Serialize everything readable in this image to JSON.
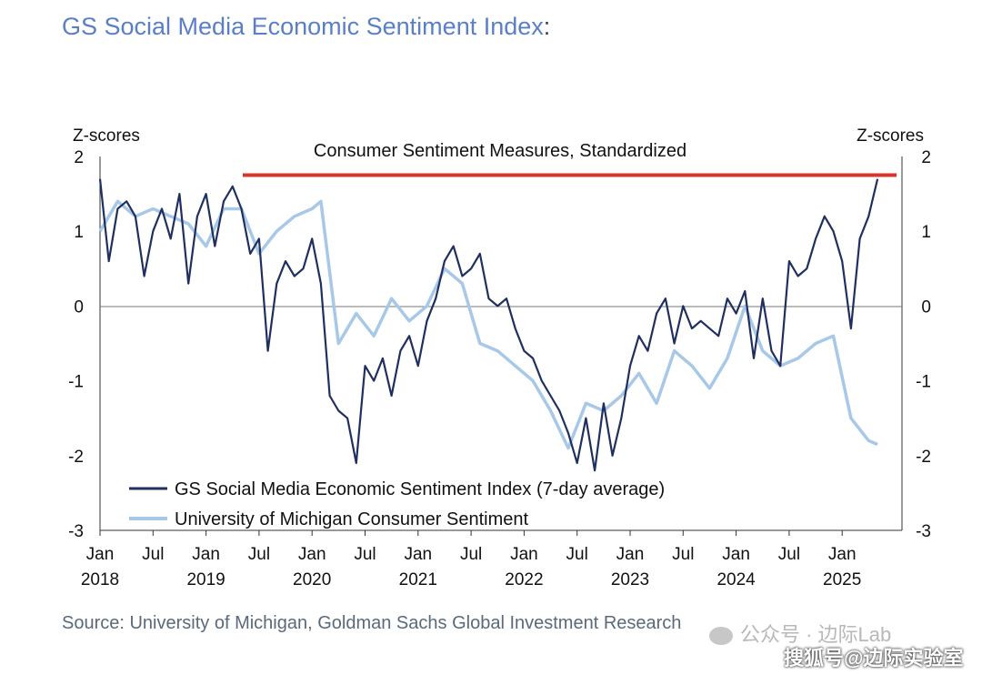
{
  "header": {
    "title": "GS Social Media Economic Sentiment Index",
    "title_suffix": ":"
  },
  "chart_data": {
    "type": "line",
    "title": "Consumer Sentiment Measures, Standardized",
    "ylabel_left": "Z-scores",
    "ylabel_right": "Z-scores",
    "ylim": [
      -3,
      2
    ],
    "y_ticks": [
      "2",
      "1",
      "0",
      "-1",
      "-2",
      "-3"
    ],
    "x_ticks": [
      {
        "month": "Jan",
        "year": "2018"
      },
      {
        "month": "Jul",
        "year": ""
      },
      {
        "month": "Jan",
        "year": "2019"
      },
      {
        "month": "Jul",
        "year": ""
      },
      {
        "month": "Jan",
        "year": "2020"
      },
      {
        "month": "Jul",
        "year": ""
      },
      {
        "month": "Jan",
        "year": "2021"
      },
      {
        "month": "Jul",
        "year": ""
      },
      {
        "month": "Jan",
        "year": "2022"
      },
      {
        "month": "Jul",
        "year": ""
      },
      {
        "month": "Jan",
        "year": "2023"
      },
      {
        "month": "Jul",
        "year": ""
      },
      {
        "month": "Jan",
        "year": "2024"
      },
      {
        "month": "Jul",
        "year": ""
      },
      {
        "month": "Jan",
        "year": "2025"
      }
    ],
    "grid": false,
    "legend": "bottom-left",
    "reference_line": {
      "y": 1.75,
      "color": "#d9342b"
    },
    "series": [
      {
        "name": "GS Social Media Economic Sentiment Index (7-day average)",
        "color": "#1f2f5f",
        "x": [
          "2018-01",
          "2018-02",
          "2018-03",
          "2018-04",
          "2018-05",
          "2018-06",
          "2018-07",
          "2018-08",
          "2018-09",
          "2018-10",
          "2018-11",
          "2018-12",
          "2019-01",
          "2019-02",
          "2019-03",
          "2019-04",
          "2019-05",
          "2019-06",
          "2019-07",
          "2019-08",
          "2019-09",
          "2019-10",
          "2019-11",
          "2019-12",
          "2020-01",
          "2020-02",
          "2020-03",
          "2020-04",
          "2020-05",
          "2020-06",
          "2020-07",
          "2020-08",
          "2020-09",
          "2020-10",
          "2020-11",
          "2020-12",
          "2021-01",
          "2021-02",
          "2021-03",
          "2021-04",
          "2021-05",
          "2021-06",
          "2021-07",
          "2021-08",
          "2021-09",
          "2021-10",
          "2021-11",
          "2021-12",
          "2022-01",
          "2022-02",
          "2022-03",
          "2022-04",
          "2022-05",
          "2022-06",
          "2022-07",
          "2022-08",
          "2022-09",
          "2022-10",
          "2022-11",
          "2022-12",
          "2023-01",
          "2023-02",
          "2023-03",
          "2023-04",
          "2023-05",
          "2023-06",
          "2023-07",
          "2023-08",
          "2023-09",
          "2023-10",
          "2023-11",
          "2023-12",
          "2024-01",
          "2024-02",
          "2024-03",
          "2024-04",
          "2024-05",
          "2024-06",
          "2024-07",
          "2024-08",
          "2024-09",
          "2024-10",
          "2024-11",
          "2024-12",
          "2025-01",
          "2025-02",
          "2025-03",
          "2025-04",
          "2025-05"
        ],
        "values": [
          1.7,
          0.6,
          1.3,
          1.4,
          1.2,
          0.4,
          1.0,
          1.3,
          0.9,
          1.5,
          0.3,
          1.2,
          1.5,
          0.8,
          1.4,
          1.6,
          1.3,
          0.7,
          0.9,
          -0.6,
          0.3,
          0.6,
          0.4,
          0.5,
          0.9,
          0.3,
          -1.2,
          -1.4,
          -1.5,
          -2.1,
          -0.8,
          -1.0,
          -0.7,
          -1.2,
          -0.6,
          -0.4,
          -0.8,
          -0.2,
          0.1,
          0.6,
          0.8,
          0.4,
          0.5,
          0.7,
          0.1,
          0.0,
          0.1,
          -0.3,
          -0.6,
          -0.7,
          -1.0,
          -1.2,
          -1.4,
          -1.7,
          -2.1,
          -1.5,
          -2.2,
          -1.3,
          -2.0,
          -1.5,
          -0.8,
          -0.4,
          -0.6,
          -0.1,
          0.1,
          -0.5,
          0.0,
          -0.3,
          -0.2,
          -0.3,
          -0.4,
          0.1,
          -0.1,
          0.2,
          -0.7,
          0.1,
          -0.6,
          -0.8,
          0.6,
          0.4,
          0.5,
          0.9,
          1.2,
          1.0,
          0.6,
          -0.3,
          0.9,
          1.2,
          1.7
        ]
      },
      {
        "name": "University of Michigan Consumer Sentiment",
        "color": "#a8c8e8",
        "x": [
          "2018-01",
          "2018-03",
          "2018-05",
          "2018-07",
          "2018-09",
          "2018-11",
          "2019-01",
          "2019-03",
          "2019-05",
          "2019-07",
          "2019-09",
          "2019-11",
          "2020-01",
          "2020-02",
          "2020-04",
          "2020-06",
          "2020-08",
          "2020-10",
          "2020-12",
          "2021-02",
          "2021-04",
          "2021-06",
          "2021-08",
          "2021-10",
          "2021-12",
          "2022-02",
          "2022-04",
          "2022-06",
          "2022-08",
          "2022-10",
          "2022-12",
          "2023-02",
          "2023-04",
          "2023-06",
          "2023-08",
          "2023-10",
          "2023-12",
          "2024-02",
          "2024-04",
          "2024-06",
          "2024-08",
          "2024-10",
          "2024-12",
          "2025-02",
          "2025-04",
          "2025-05"
        ],
        "values": [
          1.0,
          1.4,
          1.2,
          1.3,
          1.2,
          1.1,
          0.8,
          1.3,
          1.3,
          0.7,
          1.0,
          1.2,
          1.3,
          1.4,
          -0.5,
          -0.1,
          -0.4,
          0.1,
          -0.2,
          0.0,
          0.5,
          0.3,
          -0.5,
          -0.6,
          -0.8,
          -1.0,
          -1.4,
          -1.9,
          -1.3,
          -1.4,
          -1.2,
          -0.9,
          -1.3,
          -0.6,
          -0.8,
          -1.1,
          -0.7,
          0.0,
          -0.6,
          -0.8,
          -0.7,
          -0.5,
          -0.4,
          -1.5,
          -1.8,
          -1.85
        ]
      }
    ]
  },
  "source": "Source: University of Michigan, Goldman Sachs Global Investment Research",
  "watermark": {
    "line1": "公众号 · 边际Lab",
    "line2": "搜狐号@边际实验室"
  }
}
